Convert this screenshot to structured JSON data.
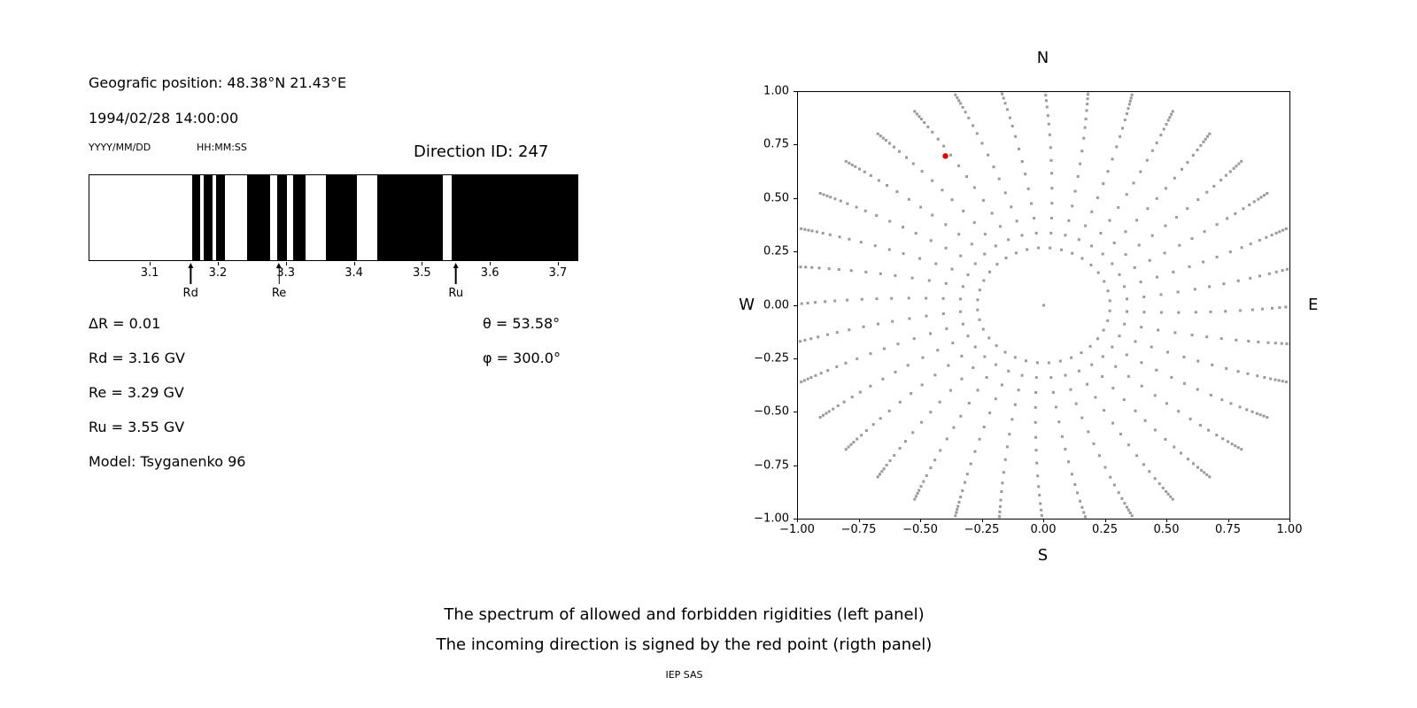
{
  "page": {
    "background": "#ffffff",
    "text_color": "#000000"
  },
  "left_panel": {
    "geo_position": "Geografic position: 48.38°N 21.43°E",
    "datetime": "1994/02/28 14:00:00",
    "date_format": "YYYY/MM/DD",
    "time_format": "HH:MM:SS",
    "direction_id": "Direction ID: 247",
    "info_left": [
      "ΔR = 0.01",
      "Rd = 3.16 GV",
      "Re = 3.29 GV",
      "Ru = 3.55 GV",
      "Model: Tsyganenko 96"
    ],
    "info_right": [
      "θ = 53.58°",
      "φ = 300.0°"
    ]
  },
  "caption": {
    "line1": "The spectrum of allowed and forbidden rigidities (left panel)",
    "line2": "The incoming direction is signed by the red point (rigth panel)",
    "credit": "IEP SAS"
  },
  "chart_data": [
    {
      "name": "rigidity_spectrum",
      "type": "barcode",
      "x_range": [
        3.01,
        3.73
      ],
      "x_ticks": [
        {
          "value": 3.1,
          "label": "3.1"
        },
        {
          "value": 3.2,
          "label": "3.2"
        },
        {
          "value": 3.3,
          "label": "3.3"
        },
        {
          "value": 3.4,
          "label": "3.4"
        },
        {
          "value": 3.5,
          "label": "3.5"
        },
        {
          "value": 3.6,
          "label": "3.6"
        },
        {
          "value": 3.7,
          "label": "3.7"
        }
      ],
      "band_color": "#000000",
      "background": "#ffffff",
      "black_bands": [
        [
          3.161,
          3.174
        ],
        [
          3.179,
          3.192
        ],
        [
          3.197,
          3.21
        ],
        [
          3.242,
          3.277
        ],
        [
          3.287,
          3.301
        ],
        [
          3.31,
          3.329
        ],
        [
          3.359,
          3.405
        ],
        [
          3.435,
          3.532
        ],
        [
          3.545,
          3.73
        ]
      ],
      "markers": [
        {
          "name": "Rd",
          "value": 3.16
        },
        {
          "name": "Re",
          "value": 3.29
        },
        {
          "name": "Ru",
          "value": 3.55
        }
      ]
    },
    {
      "name": "incoming_direction_map",
      "type": "scatter",
      "xlim": [
        -1,
        1
      ],
      "ylim": [
        -1,
        1
      ],
      "compass": {
        "top": "N",
        "bottom": "S",
        "left": "W",
        "right": "E"
      },
      "x_ticks": [
        {
          "value": -1.0,
          "label": "−1.00"
        },
        {
          "value": -0.75,
          "label": "−0.75"
        },
        {
          "value": -0.5,
          "label": "−0.50"
        },
        {
          "value": -0.25,
          "label": "−0.25"
        },
        {
          "value": 0.0,
          "label": "0.00"
        },
        {
          "value": 0.25,
          "label": "0.25"
        },
        {
          "value": 0.5,
          "label": "0.50"
        },
        {
          "value": 0.75,
          "label": "0.75"
        },
        {
          "value": 1.0,
          "label": "1.00"
        }
      ],
      "y_ticks": [
        {
          "value": 1.0,
          "label": "1.00"
        },
        {
          "value": 0.75,
          "label": "0.75"
        },
        {
          "value": 0.5,
          "label": "0.50"
        },
        {
          "value": 0.25,
          "label": "0.25"
        },
        {
          "value": 0.0,
          "label": "0.00"
        },
        {
          "value": -0.25,
          "label": "−0.25"
        },
        {
          "value": -0.5,
          "label": "−0.50"
        },
        {
          "value": -0.75,
          "label": "−0.75"
        },
        {
          "value": -1.0,
          "label": "−1.00"
        }
      ],
      "dot_color": "#9a9a9a",
      "spokes": {
        "count": 36,
        "start_deg": 0,
        "step_deg": 10,
        "twist_deg": 7,
        "radii": [
          0.27,
          0.34,
          0.41,
          0.48,
          0.55,
          0.62,
          0.68,
          0.74,
          0.8,
          0.85,
          0.89,
          0.93,
          0.96,
          0.985,
          1.005,
          1.02,
          1.035,
          1.05
        ]
      },
      "extra_points": [
        {
          "x": 0,
          "y": 0
        }
      ],
      "red_point": {
        "x": -0.4,
        "y": 0.7,
        "color": "#e60000"
      }
    }
  ]
}
